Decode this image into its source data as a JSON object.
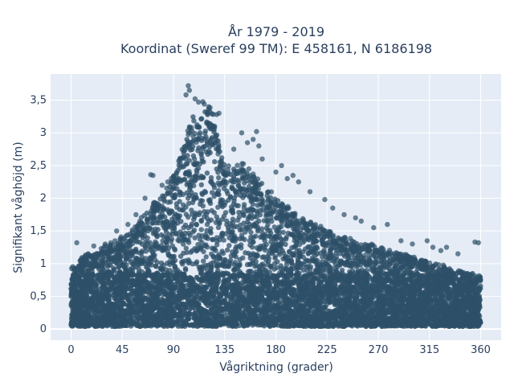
{
  "chart_data": {
    "type": "scatter",
    "title_lines": [
      "År 1979 - 2019",
      "Koordinat (Sweref 99 TM): E 458161, N 6186198"
    ],
    "xlabel": "Vågriktning (grader)",
    "ylabel": "Signifikant våghöjd (m)",
    "xlim": [
      -18,
      378
    ],
    "ylim": [
      -0.17,
      3.9
    ],
    "x_ticks": [
      0,
      45,
      90,
      135,
      180,
      225,
      270,
      315,
      360
    ],
    "x_tick_labels": [
      "0",
      "45",
      "90",
      "135",
      "180",
      "225",
      "270",
      "315",
      "360"
    ],
    "y_ticks": [
      0,
      0.5,
      1,
      1.5,
      2,
      2.5,
      3,
      3.5
    ],
    "y_tick_labels": [
      "0",
      "0,5",
      "1",
      "1,5",
      "2",
      "2,5",
      "3",
      "3,5"
    ],
    "grid": true,
    "marker_color": "#2e5068",
    "plot_bg_color": "#e5ecf6",
    "grid_color": "#ffffff",
    "text_color": "#2a3f5f",
    "envelope": {
      "direction": [
        0,
        10,
        20,
        30,
        40,
        50,
        60,
        70,
        80,
        90,
        95,
        100,
        105,
        110,
        115,
        120,
        125,
        130,
        135,
        140,
        145,
        150,
        155,
        160,
        170,
        180,
        190,
        200,
        210,
        220,
        230,
        240,
        250,
        260,
        270,
        280,
        290,
        300,
        310,
        320,
        330,
        340,
        350,
        360
      ],
      "max_height": [
        0.95,
        1.1,
        1.15,
        1.25,
        1.35,
        1.45,
        1.65,
        1.85,
        2.05,
        2.35,
        2.6,
        2.9,
        3.2,
        3.3,
        3.4,
        3.45,
        3.25,
        2.9,
        2.6,
        2.45,
        2.45,
        2.5,
        2.45,
        2.35,
        2.15,
        2.0,
        1.85,
        1.7,
        1.65,
        1.55,
        1.45,
        1.4,
        1.35,
        1.3,
        1.25,
        1.2,
        1.15,
        1.1,
        1.05,
        1.0,
        0.95,
        0.9,
        0.85,
        0.8
      ]
    },
    "outliers": [
      {
        "x": 103,
        "y": 3.72
      },
      {
        "x": 104,
        "y": 3.65
      },
      {
        "x": 101,
        "y": 3.58
      },
      {
        "x": 109,
        "y": 3.52
      },
      {
        "x": 112,
        "y": 3.47
      },
      {
        "x": 117,
        "y": 3.44
      },
      {
        "x": 121,
        "y": 3.4
      },
      {
        "x": 128,
        "y": 3.28
      },
      {
        "x": 130,
        "y": 3.3
      },
      {
        "x": 150,
        "y": 3.0
      },
      {
        "x": 163,
        "y": 3.02
      },
      {
        "x": 160,
        "y": 2.9
      },
      {
        "x": 155,
        "y": 2.85
      },
      {
        "x": 165,
        "y": 2.8
      },
      {
        "x": 143,
        "y": 2.75
      },
      {
        "x": 168,
        "y": 2.6
      },
      {
        "x": 180,
        "y": 2.4
      },
      {
        "x": 185,
        "y": 2.5
      },
      {
        "x": 190,
        "y": 2.3
      },
      {
        "x": 195,
        "y": 2.35
      },
      {
        "x": 200,
        "y": 2.25
      },
      {
        "x": 210,
        "y": 2.1
      },
      {
        "x": 223,
        "y": 1.98
      },
      {
        "x": 230,
        "y": 1.85
      },
      {
        "x": 240,
        "y": 1.75
      },
      {
        "x": 250,
        "y": 1.7
      },
      {
        "x": 255,
        "y": 1.65
      },
      {
        "x": 266,
        "y": 1.55
      },
      {
        "x": 278,
        "y": 1.6
      },
      {
        "x": 290,
        "y": 1.35
      },
      {
        "x": 300,
        "y": 1.3
      },
      {
        "x": 313,
        "y": 1.35
      },
      {
        "x": 318,
        "y": 1.25
      },
      {
        "x": 325,
        "y": 1.2
      },
      {
        "x": 330,
        "y": 1.25
      },
      {
        "x": 340,
        "y": 1.15
      },
      {
        "x": 355,
        "y": 1.33
      },
      {
        "x": 358,
        "y": 1.32
      },
      {
        "x": 70,
        "y": 2.36
      },
      {
        "x": 72,
        "y": 2.35
      },
      {
        "x": 65,
        "y": 2.0
      },
      {
        "x": 57,
        "y": 1.75
      },
      {
        "x": 50,
        "y": 1.6
      },
      {
        "x": 40,
        "y": 1.5
      },
      {
        "x": 30,
        "y": 1.3
      },
      {
        "x": 20,
        "y": 1.27
      },
      {
        "x": 5,
        "y": 1.32
      },
      {
        "x": 15,
        "y": 1.15
      },
      {
        "x": 85,
        "y": 2.25
      },
      {
        "x": 80,
        "y": 2.2
      }
    ]
  }
}
